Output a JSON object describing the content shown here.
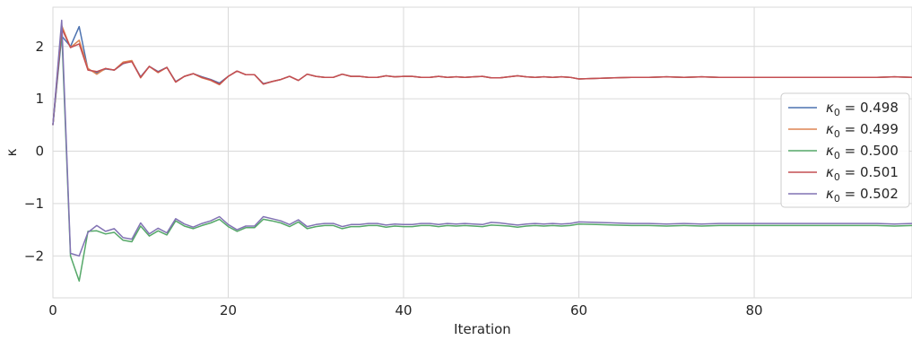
{
  "chart_data": {
    "type": "line",
    "xlabel": "Iteration",
    "ylabel": "κ",
    "xlim": [
      0,
      98
    ],
    "ylim": [
      -2.8,
      2.75
    ],
    "xticks": [
      0,
      20,
      40,
      60,
      80
    ],
    "yticks": [
      -2,
      -1,
      0,
      1,
      2
    ],
    "tick_labels_x": [
      "0",
      "20",
      "40",
      "60",
      "80"
    ],
    "tick_labels_y": [
      "−2",
      "−1",
      "0",
      "1",
      "2"
    ],
    "grid": true,
    "legend_position": "right",
    "series": [
      {
        "name": "κ₀ = 0.498",
        "legend_base": "κ",
        "legend_sub": "0",
        "legend_value": " = 0.498",
        "color": "#4c72b0",
        "x": [
          0,
          1,
          2,
          3,
          4,
          5,
          6,
          7,
          8,
          9,
          10,
          11,
          12,
          13,
          14,
          15,
          16,
          17,
          18,
          19,
          20,
          21,
          22,
          23,
          24,
          25,
          26,
          27,
          28,
          29,
          30,
          31,
          32,
          33,
          34,
          35,
          36,
          37,
          38,
          39,
          40,
          41,
          42,
          43,
          44,
          45,
          46,
          47,
          48,
          49,
          50,
          51,
          52,
          53,
          54,
          55,
          56,
          57,
          58,
          59,
          60,
          62,
          64,
          66,
          68,
          70,
          72,
          74,
          76,
          78,
          80,
          82,
          84,
          86,
          88,
          90,
          92,
          94,
          96,
          98
        ],
        "y": [
          0.5,
          2.2,
          2.0,
          2.38,
          1.56,
          1.5,
          1.57,
          1.55,
          1.67,
          1.72,
          1.42,
          1.62,
          1.52,
          1.6,
          1.33,
          1.43,
          1.48,
          1.42,
          1.37,
          1.3,
          1.43,
          1.53,
          1.46,
          1.46,
          1.29,
          1.33,
          1.37,
          1.43,
          1.35,
          1.47,
          1.43,
          1.41,
          1.41,
          1.47,
          1.43,
          1.43,
          1.41,
          1.41,
          1.44,
          1.42,
          1.43,
          1.43,
          1.41,
          1.41,
          1.43,
          1.41,
          1.42,
          1.41,
          1.42,
          1.43,
          1.4,
          1.4,
          1.42,
          1.44,
          1.42,
          1.41,
          1.42,
          1.41,
          1.42,
          1.41,
          1.38,
          1.39,
          1.4,
          1.41,
          1.41,
          1.42,
          1.41,
          1.42,
          1.41,
          1.41,
          1.41,
          1.41,
          1.41,
          1.41,
          1.41,
          1.41,
          1.41,
          1.41,
          1.42,
          1.41
        ]
      },
      {
        "name": "κ₀ = 0.499",
        "legend_base": "κ",
        "legend_sub": "0",
        "legend_value": " = 0.499",
        "color": "#dd8452",
        "x": [
          0,
          1,
          2,
          3,
          4,
          5,
          6,
          7,
          8,
          9,
          10,
          11,
          12,
          13,
          14,
          15,
          16,
          17,
          18,
          19,
          20,
          21,
          22,
          23,
          24,
          25,
          26,
          27,
          28,
          29,
          30,
          31,
          32,
          33,
          34,
          35,
          36,
          37,
          38,
          39,
          40,
          41,
          42,
          43,
          44,
          45,
          46,
          47,
          48,
          49,
          50,
          51,
          52,
          53,
          54,
          55,
          56,
          57,
          58,
          59,
          60,
          62,
          64,
          66,
          68,
          70,
          72,
          74,
          76,
          78,
          80,
          82,
          84,
          86,
          88,
          90,
          92,
          94,
          96,
          98
        ],
        "y": [
          0.5,
          2.4,
          1.98,
          2.12,
          1.58,
          1.47,
          1.58,
          1.55,
          1.7,
          1.73,
          1.4,
          1.62,
          1.5,
          1.6,
          1.32,
          1.43,
          1.48,
          1.4,
          1.35,
          1.27,
          1.43,
          1.53,
          1.46,
          1.46,
          1.28,
          1.33,
          1.37,
          1.43,
          1.35,
          1.47,
          1.43,
          1.41,
          1.41,
          1.47,
          1.43,
          1.43,
          1.41,
          1.41,
          1.44,
          1.42,
          1.43,
          1.43,
          1.41,
          1.41,
          1.43,
          1.41,
          1.42,
          1.41,
          1.42,
          1.43,
          1.4,
          1.4,
          1.42,
          1.44,
          1.42,
          1.41,
          1.42,
          1.41,
          1.42,
          1.41,
          1.38,
          1.39,
          1.4,
          1.41,
          1.41,
          1.42,
          1.41,
          1.42,
          1.41,
          1.41,
          1.41,
          1.41,
          1.41,
          1.41,
          1.41,
          1.41,
          1.41,
          1.41,
          1.42,
          1.41
        ]
      },
      {
        "name": "κ₀ = 0.500",
        "legend_base": "κ",
        "legend_sub": "0",
        "legend_value": " = 0.500",
        "color": "#55a868",
        "x": [
          0,
          1,
          2,
          3,
          4,
          5,
          6,
          7,
          8,
          9,
          10,
          11,
          12,
          13,
          14,
          15,
          16,
          17,
          18,
          19,
          20,
          21,
          22,
          23,
          24,
          25,
          26,
          27,
          28,
          29,
          30,
          31,
          32,
          33,
          34,
          35,
          36,
          37,
          38,
          39,
          40,
          41,
          42,
          43,
          44,
          45,
          46,
          47,
          48,
          49,
          50,
          51,
          52,
          53,
          54,
          55,
          56,
          57,
          58,
          59,
          60,
          62,
          64,
          66,
          68,
          70,
          72,
          74,
          76,
          78,
          80,
          82,
          84,
          86,
          88,
          90,
          92,
          94,
          96,
          98
        ],
        "y": [
          0.5,
          2.3,
          -2.0,
          -2.48,
          -1.53,
          -1.52,
          -1.58,
          -1.55,
          -1.7,
          -1.73,
          -1.43,
          -1.62,
          -1.52,
          -1.6,
          -1.33,
          -1.43,
          -1.48,
          -1.42,
          -1.37,
          -1.3,
          -1.44,
          -1.53,
          -1.46,
          -1.46,
          -1.3,
          -1.33,
          -1.37,
          -1.44,
          -1.35,
          -1.48,
          -1.44,
          -1.42,
          -1.42,
          -1.48,
          -1.44,
          -1.44,
          -1.42,
          -1.42,
          -1.45,
          -1.43,
          -1.44,
          -1.44,
          -1.42,
          -1.42,
          -1.44,
          -1.42,
          -1.43,
          -1.42,
          -1.43,
          -1.44,
          -1.41,
          -1.42,
          -1.43,
          -1.45,
          -1.43,
          -1.42,
          -1.43,
          -1.42,
          -1.43,
          -1.42,
          -1.39,
          -1.4,
          -1.41,
          -1.42,
          -1.42,
          -1.43,
          -1.42,
          -1.43,
          -1.42,
          -1.42,
          -1.42,
          -1.42,
          -1.42,
          -1.42,
          -1.42,
          -1.42,
          -1.42,
          -1.42,
          -1.43,
          -1.42
        ]
      },
      {
        "name": "κ₀ = 0.501",
        "legend_base": "κ",
        "legend_sub": "0",
        "legend_value": " = 0.501",
        "color": "#c44e52",
        "x": [
          0,
          1,
          2,
          3,
          4,
          5,
          6,
          7,
          8,
          9,
          10,
          11,
          12,
          13,
          14,
          15,
          16,
          17,
          18,
          19,
          20,
          21,
          22,
          23,
          24,
          25,
          26,
          27,
          28,
          29,
          30,
          31,
          32,
          33,
          34,
          35,
          36,
          37,
          38,
          39,
          40,
          41,
          42,
          43,
          44,
          45,
          46,
          47,
          48,
          49,
          50,
          51,
          52,
          53,
          54,
          55,
          56,
          57,
          58,
          59,
          60,
          62,
          64,
          66,
          68,
          70,
          72,
          74,
          76,
          78,
          80,
          82,
          84,
          86,
          88,
          90,
          92,
          94,
          96,
          98
        ],
        "y": [
          0.5,
          2.35,
          1.98,
          2.05,
          1.55,
          1.52,
          1.58,
          1.55,
          1.68,
          1.71,
          1.41,
          1.62,
          1.51,
          1.6,
          1.32,
          1.43,
          1.48,
          1.41,
          1.36,
          1.28,
          1.43,
          1.53,
          1.46,
          1.46,
          1.28,
          1.33,
          1.37,
          1.43,
          1.35,
          1.47,
          1.43,
          1.41,
          1.41,
          1.47,
          1.43,
          1.43,
          1.41,
          1.41,
          1.44,
          1.42,
          1.43,
          1.43,
          1.41,
          1.41,
          1.43,
          1.41,
          1.42,
          1.41,
          1.42,
          1.43,
          1.4,
          1.4,
          1.42,
          1.44,
          1.42,
          1.41,
          1.42,
          1.41,
          1.42,
          1.41,
          1.38,
          1.39,
          1.4,
          1.41,
          1.41,
          1.42,
          1.41,
          1.42,
          1.41,
          1.41,
          1.41,
          1.41,
          1.41,
          1.41,
          1.41,
          1.41,
          1.41,
          1.41,
          1.42,
          1.41
        ]
      },
      {
        "name": "κ₀ = 0.502",
        "legend_base": "κ",
        "legend_sub": "0",
        "legend_value": " = 0.502",
        "color": "#8172b3",
        "x": [
          0,
          1,
          2,
          3,
          4,
          5,
          6,
          7,
          8,
          9,
          10,
          11,
          12,
          13,
          14,
          15,
          16,
          17,
          18,
          19,
          20,
          21,
          22,
          23,
          24,
          25,
          26,
          27,
          28,
          29,
          30,
          31,
          32,
          33,
          34,
          35,
          36,
          37,
          38,
          39,
          40,
          41,
          42,
          43,
          44,
          45,
          46,
          47,
          48,
          49,
          50,
          51,
          52,
          53,
          54,
          55,
          56,
          57,
          58,
          59,
          60,
          62,
          64,
          66,
          68,
          70,
          72,
          74,
          76,
          78,
          80,
          82,
          84,
          86,
          88,
          90,
          92,
          94,
          96,
          98
        ],
        "y": [
          0.5,
          2.5,
          -1.95,
          -2.0,
          -1.55,
          -1.42,
          -1.53,
          -1.48,
          -1.65,
          -1.68,
          -1.37,
          -1.58,
          -1.47,
          -1.56,
          -1.29,
          -1.39,
          -1.45,
          -1.38,
          -1.33,
          -1.25,
          -1.4,
          -1.5,
          -1.43,
          -1.43,
          -1.25,
          -1.29,
          -1.33,
          -1.4,
          -1.31,
          -1.44,
          -1.4,
          -1.38,
          -1.38,
          -1.44,
          -1.4,
          -1.4,
          -1.38,
          -1.38,
          -1.41,
          -1.39,
          -1.4,
          -1.4,
          -1.38,
          -1.38,
          -1.4,
          -1.38,
          -1.39,
          -1.38,
          -1.39,
          -1.4,
          -1.36,
          -1.37,
          -1.39,
          -1.41,
          -1.39,
          -1.38,
          -1.39,
          -1.38,
          -1.39,
          -1.38,
          -1.35,
          -1.36,
          -1.37,
          -1.38,
          -1.38,
          -1.39,
          -1.38,
          -1.39,
          -1.38,
          -1.38,
          -1.38,
          -1.38,
          -1.38,
          -1.38,
          -1.38,
          -1.38,
          -1.38,
          -1.38,
          -1.39,
          -1.38
        ]
      }
    ]
  }
}
